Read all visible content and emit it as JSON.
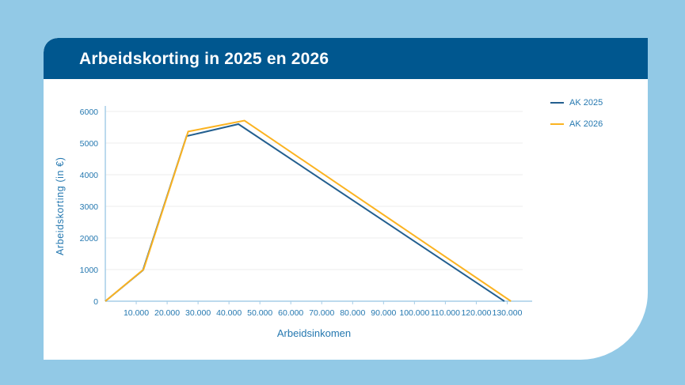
{
  "header": {
    "title": "Arbeidskorting in 2025 en 2026"
  },
  "colors": {
    "page_bg": "#92c9e6",
    "card_bg": "#ffffff",
    "header_bg": "#00578f",
    "title_text": "#ffffff",
    "axis_text": "#2578b0",
    "grid_line": "#ededed",
    "axis_line": "#a6cde7",
    "ak_2025_line": "#235f8f",
    "ak_2026_line": "#fbb321"
  },
  "chart_data": {
    "type": "line",
    "title": "Arbeidskorting in 2025 en 2026",
    "xlabel": "Arbeidsinkomen",
    "ylabel": "Arbeidskorting (in €)",
    "xlim": [
      0,
      135000
    ],
    "ylim": [
      0,
      6000
    ],
    "grid": "horizontal",
    "legend_position": "top-right",
    "x_ticks": [
      10000,
      20000,
      30000,
      40000,
      50000,
      60000,
      70000,
      80000,
      90000,
      100000,
      110000,
      120000,
      130000
    ],
    "x_tick_labels": [
      "10.000",
      "20.000",
      "30.000",
      "40.000",
      "50.000",
      "60.000",
      "70.000",
      "80.000",
      "90.000",
      "100.000",
      "110.000",
      "120.000",
      "130.000"
    ],
    "y_ticks": [
      0,
      1000,
      2000,
      3000,
      4000,
      5000,
      6000
    ],
    "y_tick_labels": [
      "0",
      "1000",
      "2000",
      "3000",
      "4000",
      "5000",
      "6000"
    ],
    "series": [
      {
        "name": "AK 2025",
        "color": "#235f8f",
        "points": [
          [
            0,
            0
          ],
          [
            12169,
            980
          ],
          [
            26288,
            5220
          ],
          [
            43071,
            5599
          ],
          [
            129078,
            0
          ]
        ]
      },
      {
        "name": "AK 2026",
        "color": "#fbb321",
        "points": [
          [
            0,
            0
          ],
          [
            12372,
            1004
          ],
          [
            26799,
            5366
          ],
          [
            45000,
            5712
          ],
          [
            131200,
            0
          ]
        ]
      }
    ]
  }
}
